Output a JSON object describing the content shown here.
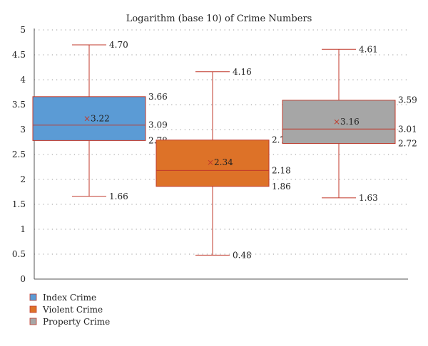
{
  "chart_data": {
    "type": "box",
    "title": "Logarithm (base 10) of Crime Numbers",
    "xlabel": "",
    "ylabel": "",
    "ylim": [
      0,
      5
    ],
    "yticks": [
      "0",
      "0.5",
      "1",
      "1.5",
      "2",
      "2.5",
      "3",
      "3.5",
      "4",
      "4.5",
      "5"
    ],
    "grid": "horizontal dotted",
    "legend_position": "bottom-left",
    "series": [
      {
        "name": "Index Crime",
        "color": "#5b9bd5",
        "min": 1.66,
        "q1": 2.78,
        "median": 3.09,
        "q3": 3.66,
        "max": 4.7,
        "mean": 3.22,
        "labels": {
          "min": "1.66",
          "q1": "2.78",
          "median": "3.09",
          "q3": "3.66",
          "max": "4.70",
          "mean": "3.22"
        }
      },
      {
        "name": "Violent Crime",
        "color": "#dd7228",
        "min": 0.48,
        "q1": 1.86,
        "median": 2.18,
        "q3": 2.79,
        "max": 4.16,
        "mean": 2.34,
        "labels": {
          "min": "0.48",
          "q1": "1.86",
          "median": "2.18",
          "q3": "2.79",
          "max": "4.16",
          "mean": "2.34"
        }
      },
      {
        "name": "Property Crime",
        "color": "#a6a6a6",
        "min": 1.63,
        "q1": 2.72,
        "median": 3.01,
        "q3": 3.59,
        "max": 4.61,
        "mean": 3.16,
        "labels": {
          "min": "1.63",
          "q1": "2.72",
          "median": "3.01",
          "q3": "3.59",
          "max": "4.61",
          "mean": "3.16"
        }
      }
    ],
    "colors": {
      "whisker": "#c0392b",
      "box_border": "#c0392b",
      "grid": "#9a9a9a",
      "axis": "#555555"
    },
    "mean_marker": "×"
  }
}
